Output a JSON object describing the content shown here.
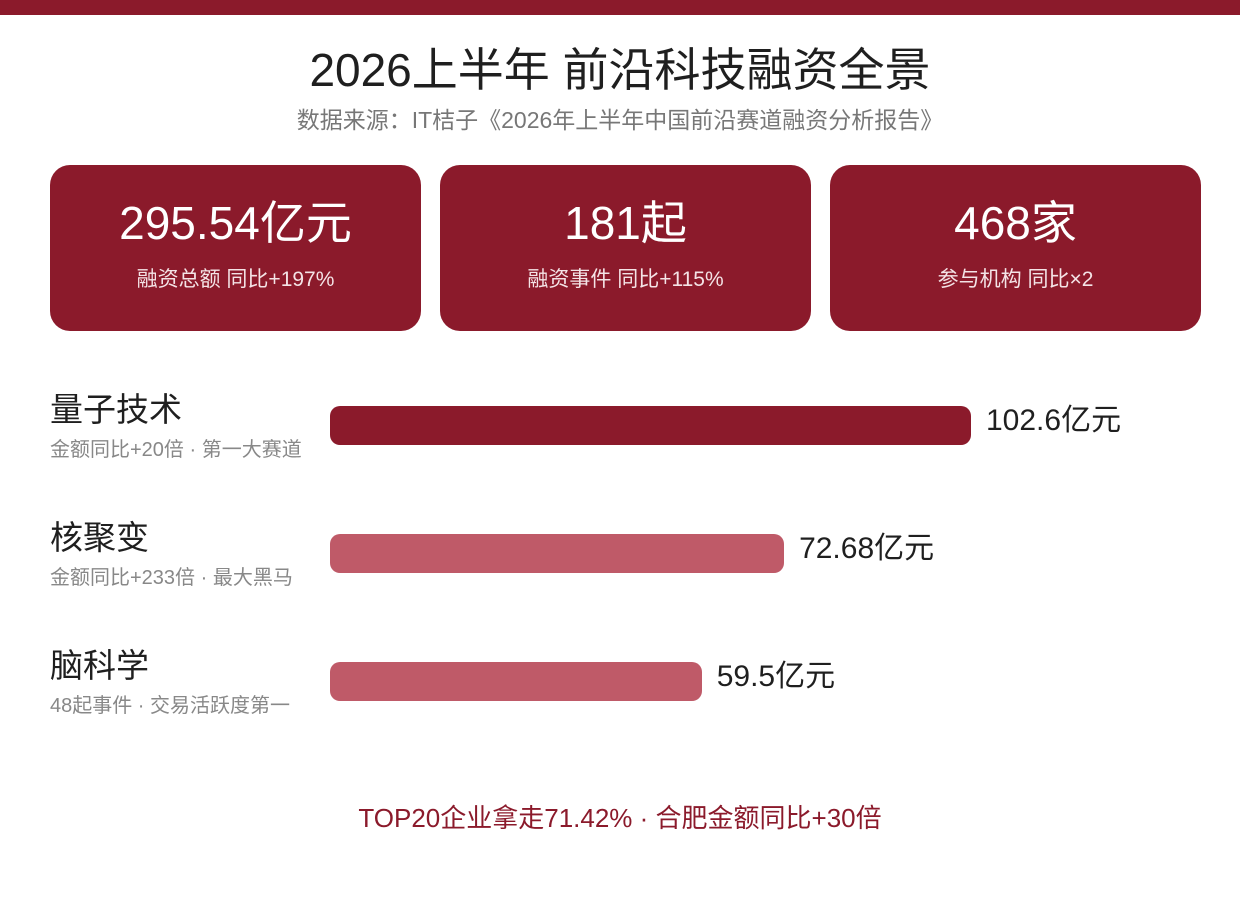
{
  "chart_data": {
    "type": "bar",
    "orientation": "horizontal",
    "title": "2026上半年 前沿科技融资全景",
    "subtitle": "数据来源：IT桔子《2026年上半年中国前沿赛道融资分析报告》",
    "categories": [
      "量子技术",
      "核聚变",
      "脑科学"
    ],
    "values": [
      102.6,
      72.68,
      59.5
    ],
    "value_labels": [
      "102.6亿元",
      "72.68亿元",
      "59.5亿元"
    ],
    "notes": [
      "金额同比+20倍 · 第一大赛道",
      "金额同比+233倍 · 最大黑马",
      "48起事件 · 交易活跃度第一"
    ],
    "bar_colors": [
      "#8b1a2b",
      "#bf5a68",
      "#bf5a68"
    ],
    "xlim": [
      0,
      102.6
    ],
    "grid": false
  },
  "stats": [
    {
      "value": "295.54亿元",
      "label": "融资总额 同比+197%"
    },
    {
      "value": "181起",
      "label": "融资事件 同比+115%"
    },
    {
      "value": "468家",
      "label": "参与机构 同比×2"
    }
  ],
  "footer": "TOP20企业拿走71.42% · 合肥金额同比+30倍",
  "colors": {
    "accent": "#8b1a2b",
    "secondary": "#bf5a68",
    "text": "#1f1f1f",
    "muted": "#888888"
  }
}
